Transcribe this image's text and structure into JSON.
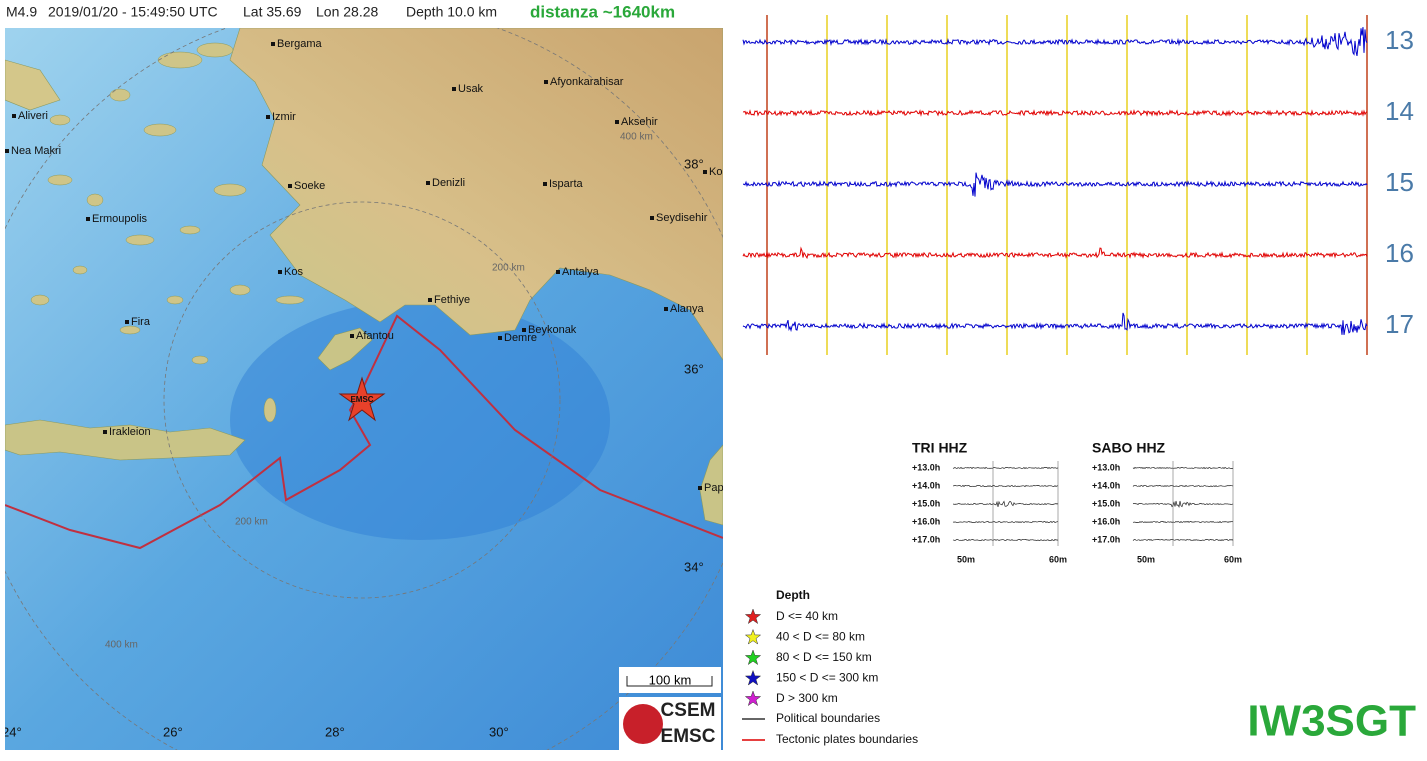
{
  "header": {
    "magnitude": "M4.9",
    "datetime": "2019/01/20 - 15:49:50 UTC",
    "latitude": "Lat 35.69",
    "longitude": "Lon 28.28",
    "depth": "Depth 10.0 km",
    "distance": "distanza ~1640km"
  },
  "map": {
    "cities": [
      "Bergama",
      "Aliveri",
      "Izmir",
      "Usak",
      "Afyonkarahisar",
      "Aksehir",
      "Nea Makri",
      "Soeke",
      "Denizli",
      "Isparta",
      "Kon",
      "Seydisehir",
      "Ermoupolis",
      "Kos",
      "Antalya",
      "Fethiye",
      "Alanya",
      "Fira",
      "Afantou",
      "Demre",
      "Beykonak",
      "Irakleion",
      "Pap"
    ],
    "rings": [
      "400 km",
      "200 km",
      "200 km",
      "400 km"
    ],
    "lat_labels": [
      "38°",
      "36°",
      "34°"
    ],
    "lon_labels": [
      "24°",
      "26°",
      "28°",
      "30°"
    ],
    "epicenter_label": "EMSC",
    "scale": "100 km",
    "logo": [
      "CSEM",
      "EMSC"
    ]
  },
  "helicorder": {
    "hours": [
      "13",
      "14",
      "15",
      "16",
      "17"
    ]
  },
  "stations": [
    {
      "name": "TRI HHZ",
      "rows": [
        "+13.0h",
        "+14.0h",
        "+15.0h",
        "+16.0h",
        "+17.0h"
      ],
      "x_labels": [
        "50m",
        "60m"
      ]
    },
    {
      "name": "SABO HHZ",
      "rows": [
        "+13.0h",
        "+14.0h",
        "+15.0h",
        "+16.0h",
        "+17.0h"
      ],
      "x_labels": [
        "50m",
        "60m"
      ]
    }
  ],
  "legend": {
    "title": "Depth",
    "items": [
      {
        "label": "D <= 40 km",
        "color": "#e02020"
      },
      {
        "label": "40 < D <= 80 km",
        "color": "#f0f020"
      },
      {
        "label": "80 < D <= 150 km",
        "color": "#20d020"
      },
      {
        "label": "150 < D <= 300 km",
        "color": "#1010c0"
      },
      {
        "label": "D > 300 km",
        "color": "#d020d0"
      }
    ],
    "lines": [
      {
        "label": "Political boundaries",
        "color": "#333333"
      },
      {
        "label": "Tectonic plates boundaries",
        "color": "#dd0000"
      }
    ]
  },
  "callsign": "IW3SGT"
}
